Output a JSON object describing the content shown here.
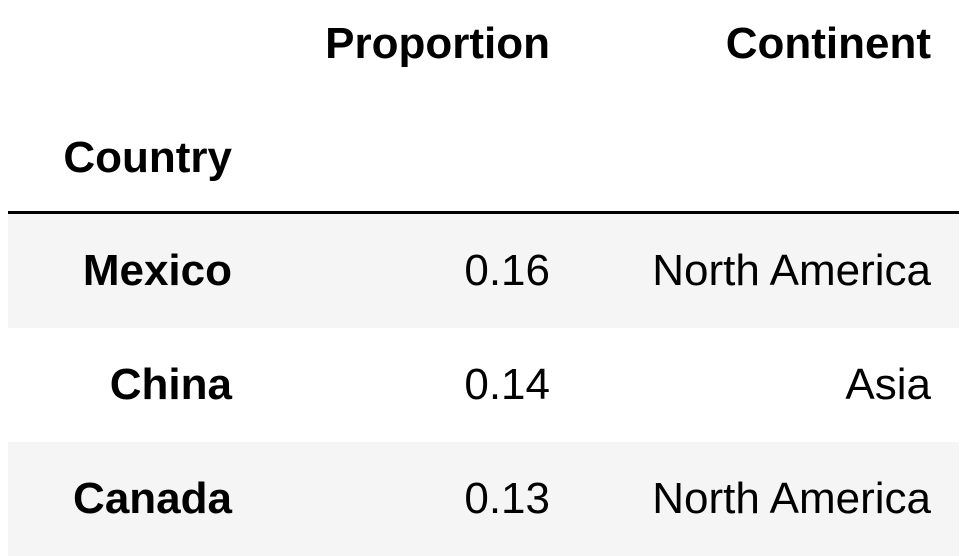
{
  "table": {
    "columns": [
      "Proportion",
      "Continent"
    ],
    "index_name": "Country",
    "rows": [
      {
        "country": "Mexico",
        "proportion": "0.16",
        "continent": "North America"
      },
      {
        "country": "China",
        "proportion": "0.14",
        "continent": "Asia"
      },
      {
        "country": "Canada",
        "proportion": "0.13",
        "continent": "North America"
      }
    ]
  }
}
